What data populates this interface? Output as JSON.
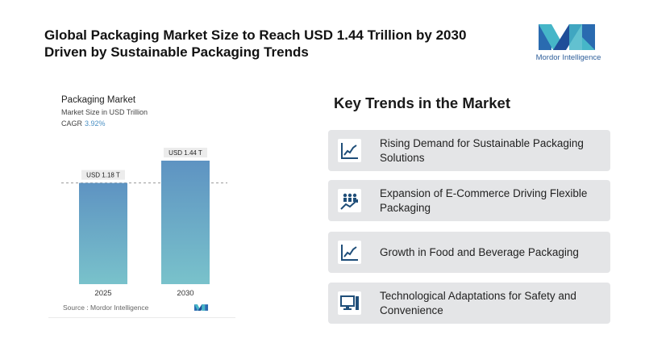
{
  "headline": "Global Packaging Market Size to Reach USD 1.44 Trillion by 2030 Driven by Sustainable Packaging Trends",
  "logo": {
    "text": "Mordor Intelligence",
    "color": "#2f5f9a"
  },
  "chart_data": {
    "type": "bar",
    "title": "Packaging Market",
    "subtitle": "Market Size in USD Trillion",
    "cagr_label": "CAGR",
    "cagr_value": "3.92%",
    "categories": [
      "2025",
      "2030"
    ],
    "values": [
      1.18,
      1.44
    ],
    "data_labels": [
      "USD 1.18 T",
      "USD 1.44 T"
    ],
    "ylim": [
      0,
      1.6
    ],
    "bar_colors": {
      "top": "#5e93c2",
      "bottom": "#79c2cb"
    },
    "reference_line": "dashed at 2025 value",
    "source": "Source : Mordor Intelligence"
  },
  "trends": {
    "title": "Key Trends in the Market",
    "items": [
      {
        "label": "Rising Demand for Sustainable Packaging Solutions",
        "icon": "line-chart-icon"
      },
      {
        "label": "Expansion of E-Commerce Driving Flexible Packaging",
        "icon": "group-growth-icon"
      },
      {
        "label": "Growth in Food and Beverage Packaging",
        "icon": "line-chart-icon"
      },
      {
        "label": "Technological Adaptations for Safety and Convenience",
        "icon": "computer-icon"
      }
    ]
  },
  "colors": {
    "icon_blue": "#1f4e79",
    "box_bg": "#e4e5e7"
  }
}
